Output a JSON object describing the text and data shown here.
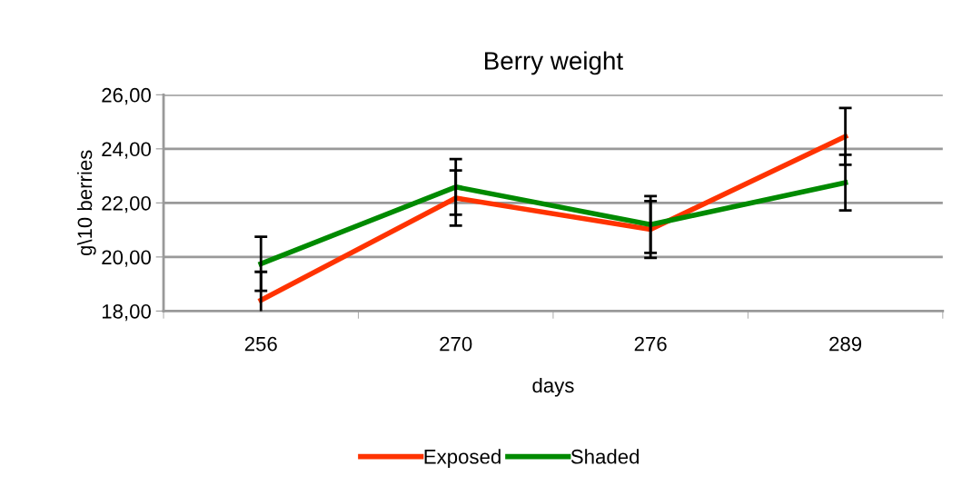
{
  "chart_data": {
    "type": "line",
    "title": "Berry weight",
    "xlabel": "days",
    "ylabel": "g\\10 berries",
    "categories": [
      "256",
      "270",
      "276",
      "289"
    ],
    "series": [
      {
        "name": "Exposed",
        "color": "#ff3300",
        "values": [
          18.4,
          22.18,
          21.02,
          24.46
        ],
        "errors": [
          1.05,
          1.02,
          1.05,
          1.05
        ]
      },
      {
        "name": "Shaded",
        "color": "#008a00",
        "values": [
          19.75,
          22.59,
          21.2,
          22.75
        ],
        "errors": [
          1.0,
          1.03,
          1.05,
          1.03
        ]
      }
    ],
    "ylim": [
      18,
      26
    ],
    "yticks": [
      {
        "value": 18,
        "label": "18,00"
      },
      {
        "value": 20,
        "label": "20,00"
      },
      {
        "value": 22,
        "label": "22,00"
      },
      {
        "value": 24,
        "label": "24,00"
      },
      {
        "value": 26,
        "label": "26,00"
      }
    ],
    "grid": "y",
    "legend": "bottom",
    "marker": "none",
    "line_style": "solid"
  }
}
